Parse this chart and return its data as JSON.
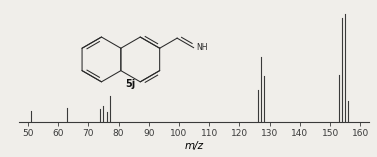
{
  "peaks": [
    {
      "mz": 51,
      "intensity": 11
    },
    {
      "mz": 63,
      "intensity": 13
    },
    {
      "mz": 74,
      "intensity": 12
    },
    {
      "mz": 75,
      "intensity": 15
    },
    {
      "mz": 76,
      "intensity": 10
    },
    {
      "mz": 77,
      "intensity": 24
    },
    {
      "mz": 126,
      "intensity": 30
    },
    {
      "mz": 127,
      "intensity": 60
    },
    {
      "mz": 128,
      "intensity": 43
    },
    {
      "mz": 153,
      "intensity": 44
    },
    {
      "mz": 154,
      "intensity": 96
    },
    {
      "mz": 155,
      "intensity": 100
    },
    {
      "mz": 156,
      "intensity": 20
    }
  ],
  "xmin": 47,
  "xmax": 163,
  "ymin": 0,
  "ymax": 110,
  "xlabel": "m/z",
  "xticks": [
    50,
    60,
    70,
    80,
    90,
    100,
    110,
    120,
    130,
    140,
    150,
    160
  ],
  "background_color": "#f0eeea",
  "bar_color": "#3a3a3a",
  "label_text": "5j",
  "figwidth": 3.77,
  "figheight": 1.57,
  "dpi": 100
}
